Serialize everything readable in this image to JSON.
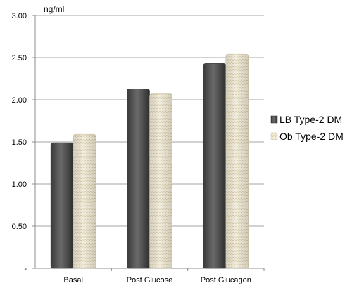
{
  "chart_data": {
    "type": "bar",
    "categories": [
      "Basal",
      "Post Glucose",
      "Post Glucagon"
    ],
    "series": [
      {
        "name": "LB Type-2 DM",
        "values": [
          1.49,
          2.13,
          2.43
        ],
        "color": "#555555"
      },
      {
        "name": "Ob Type-2 DM",
        "values": [
          1.59,
          2.07,
          2.54
        ],
        "color": "#e8dfc5"
      }
    ],
    "unit_label": "ng/ml",
    "ylim": [
      0,
      3.0
    ],
    "yticks": [
      {
        "value": 0,
        "label": "-"
      },
      {
        "value": 0.5,
        "label": "0.50"
      },
      {
        "value": 1.0,
        "label": "1.00"
      },
      {
        "value": 1.5,
        "label": "1.50"
      },
      {
        "value": 2.0,
        "label": "2.00"
      },
      {
        "value": 2.5,
        "label": "2.50"
      },
      {
        "value": 3.0,
        "label": "3.00"
      }
    ],
    "grid": true,
    "legend_position": "right"
  }
}
